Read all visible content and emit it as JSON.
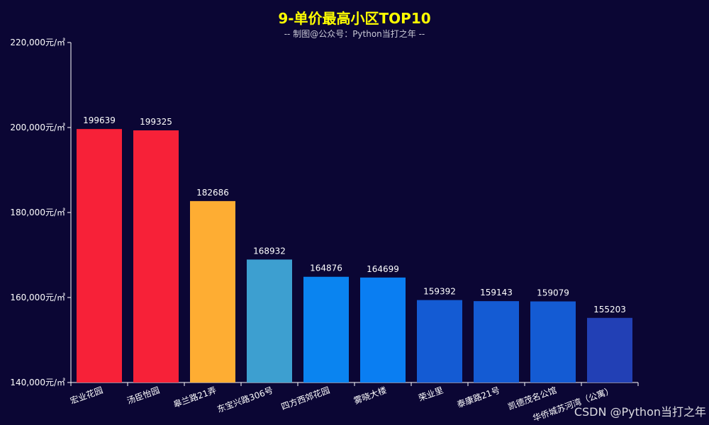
{
  "chart_data": {
    "type": "bar",
    "title": "9-单价最高小区TOP10",
    "subtitle": "-- 制图@公众号：Python当打之年 --",
    "categories": [
      "宏业花园",
      "汤臣怡园",
      "皋兰路21弄",
      "东宝兴路306号",
      "四方西郊花园",
      "雾晓大楼",
      "荣业里",
      "泰康路21号",
      "凯德茂名公馆",
      "华侨城苏河湾（公寓）"
    ],
    "values": [
      199639,
      199325,
      182686,
      168932,
      164876,
      164699,
      159392,
      159143,
      159079,
      155203
    ],
    "ylim": [
      140000,
      220000
    ],
    "yticks": [
      140000,
      160000,
      180000,
      200000,
      220000
    ],
    "ytick_labels": [
      "140,000元/㎡",
      "160,000元/㎡",
      "180,000元/㎡",
      "200,000元/㎡",
      "220,000元/㎡"
    ],
    "xlabel": "",
    "ylabel": "",
    "grid": false,
    "bar_colors": [
      "#f72138",
      "#f72138",
      "#fead33",
      "#3d9fd0",
      "#0a84f0",
      "#0a7ef2",
      "#145bd3",
      "#145bd3",
      "#145bd3",
      "#2240b5"
    ]
  },
  "colors": {
    "background": "#0b0634",
    "title": "#ffff00",
    "axis": "#ffffff",
    "label_text": "#ffffff"
  },
  "watermark": "CSDN @Python当打之年"
}
